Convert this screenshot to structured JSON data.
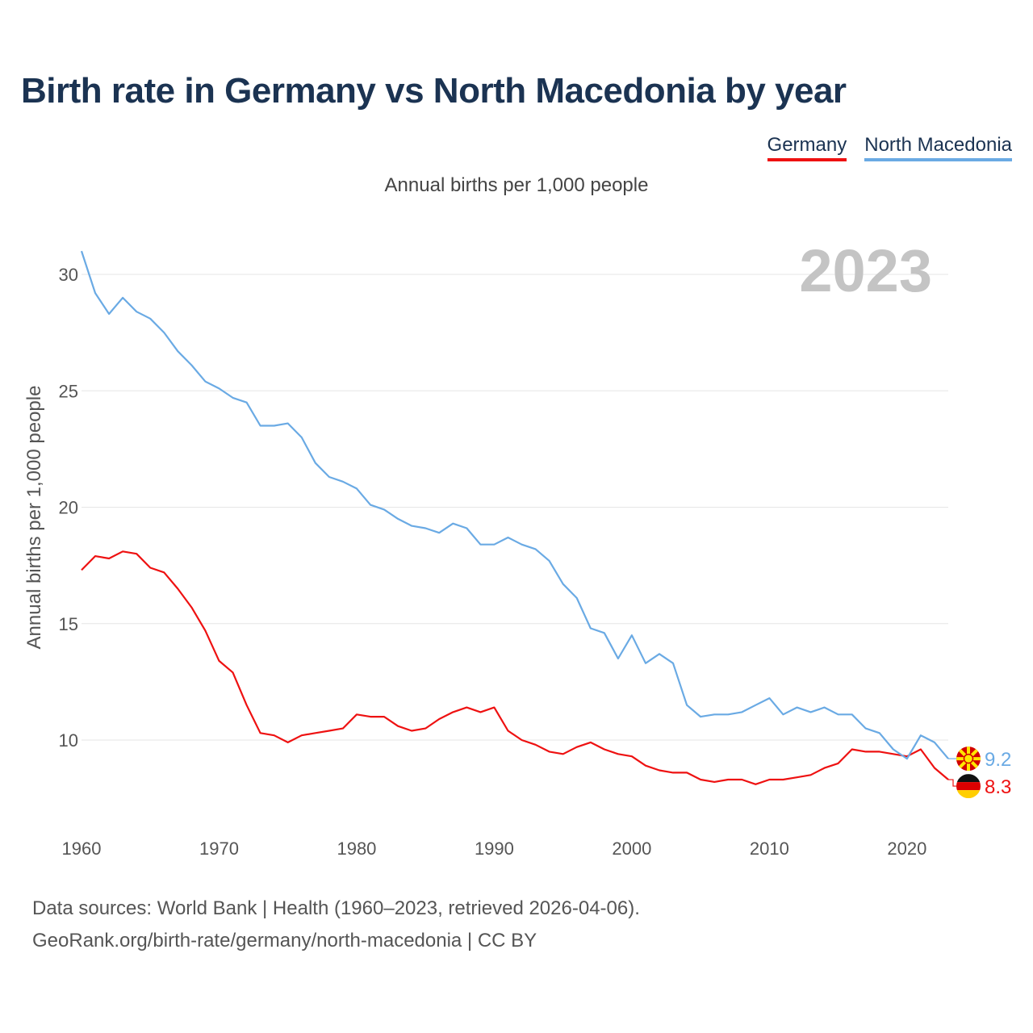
{
  "title": "Birth rate in Germany vs North Macedonia by year",
  "subtitle": "Annual births per 1,000 people",
  "legend": [
    {
      "name": "Germany",
      "color": "#ee1111"
    },
    {
      "name": "North Macedonia",
      "color": "#6aaae4"
    }
  ],
  "year_label": "2023",
  "source": {
    "line1": "Data sources: World Bank | Health (1960–2023, retrieved 2026-04-06).",
    "line2": "GeoRank.org/birth-rate/germany/north-macedonia | CC BY"
  },
  "chart_data": {
    "type": "line",
    "title": "Birth rate in Germany vs North Macedonia by year",
    "xlabel": "",
    "ylabel": "Annual births per 1,000 people",
    "xlim": [
      1960,
      2023
    ],
    "ylim": [
      7,
      31
    ],
    "x_ticks": [
      1960,
      1970,
      1980,
      1990,
      2000,
      2010,
      2020
    ],
    "y_ticks": [
      10,
      15,
      20,
      25,
      30
    ],
    "grid": true,
    "legend_position": "top-right",
    "x": [
      1960,
      1961,
      1962,
      1963,
      1964,
      1965,
      1966,
      1967,
      1968,
      1969,
      1970,
      1971,
      1972,
      1973,
      1974,
      1975,
      1976,
      1977,
      1978,
      1979,
      1980,
      1981,
      1982,
      1983,
      1984,
      1985,
      1986,
      1987,
      1988,
      1989,
      1990,
      1991,
      1992,
      1993,
      1994,
      1995,
      1996,
      1997,
      1998,
      1999,
      2000,
      2001,
      2002,
      2003,
      2004,
      2005,
      2006,
      2007,
      2008,
      2009,
      2010,
      2011,
      2012,
      2013,
      2014,
      2015,
      2016,
      2017,
      2018,
      2019,
      2020,
      2021,
      2022,
      2023
    ],
    "series": [
      {
        "name": "Germany",
        "color": "#ee1111",
        "end_label": "8.3",
        "values": [
          17.3,
          17.9,
          17.8,
          18.1,
          18.0,
          17.4,
          17.2,
          16.5,
          15.7,
          14.7,
          13.4,
          12.9,
          11.5,
          10.3,
          10.2,
          9.9,
          10.2,
          10.3,
          10.4,
          10.5,
          11.1,
          11.0,
          11.0,
          10.6,
          10.4,
          10.5,
          10.9,
          11.2,
          11.4,
          11.2,
          11.4,
          10.4,
          10.0,
          9.8,
          9.5,
          9.4,
          9.7,
          9.9,
          9.6,
          9.4,
          9.3,
          8.9,
          8.7,
          8.6,
          8.6,
          8.3,
          8.2,
          8.3,
          8.3,
          8.1,
          8.3,
          8.3,
          8.4,
          8.5,
          8.8,
          9.0,
          9.6,
          9.5,
          9.5,
          9.4,
          9.3,
          9.6,
          8.8,
          8.3
        ]
      },
      {
        "name": "North Macedonia",
        "color": "#6aaae4",
        "end_label": "9.2",
        "values": [
          31.0,
          29.2,
          28.3,
          29.0,
          28.4,
          28.1,
          27.5,
          26.7,
          26.1,
          25.4,
          25.1,
          24.7,
          24.5,
          23.5,
          23.5,
          23.6,
          23.0,
          21.9,
          21.3,
          21.1,
          20.8,
          20.1,
          19.9,
          19.5,
          19.2,
          19.1,
          18.9,
          19.3,
          19.1,
          18.4,
          18.4,
          18.7,
          18.4,
          18.2,
          17.7,
          16.7,
          16.1,
          14.8,
          14.6,
          13.5,
          14.5,
          13.3,
          13.7,
          13.3,
          11.5,
          11.0,
          11.1,
          11.1,
          11.2,
          11.5,
          11.8,
          11.1,
          11.4,
          11.2,
          11.4,
          11.1,
          11.1,
          10.5,
          10.3,
          9.6,
          9.2,
          10.2,
          9.9,
          9.2
        ]
      }
    ]
  }
}
